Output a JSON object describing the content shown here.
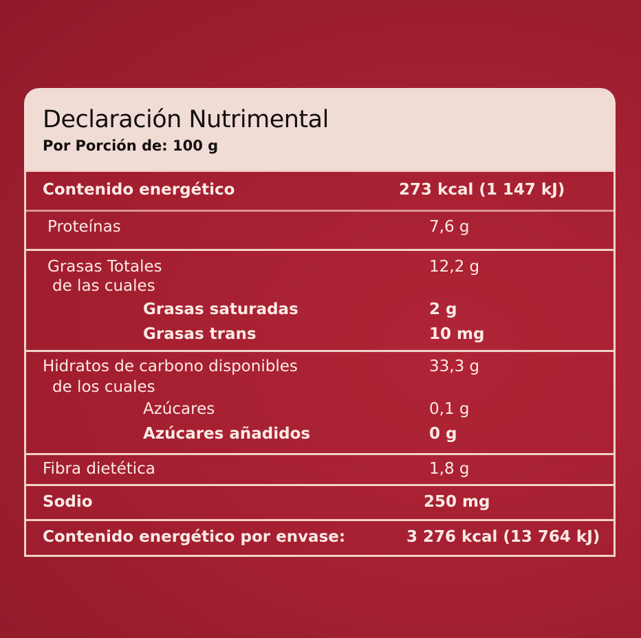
{
  "header": {
    "title": "Declaración Nutrimental",
    "subtitle": "Por Porción de: 100 g"
  },
  "rows": [
    {
      "label": "Contenido energético",
      "value": "273 kcal (1 147 kJ)"
    },
    {
      "label": "Proteínas",
      "value": "7,6 g"
    },
    {
      "label": "Grasas Totales",
      "sublabel": "de las cuales",
      "value": "12,2 g",
      "items": [
        {
          "label": "Grasas saturadas",
          "value": "2 g"
        },
        {
          "label": "Grasas trans",
          "value": "10 mg"
        }
      ]
    },
    {
      "label": "Hidratos de carbono disponibles",
      "sublabel": "de los cuales",
      "value": "33,3 g",
      "items": [
        {
          "label": "Azúcares",
          "value": "0,1 g"
        },
        {
          "label": "Azúcares añadidos",
          "value": "0 g"
        }
      ]
    },
    {
      "label": "Fibra dietética",
      "value": "1,8 g"
    },
    {
      "label": "Sodio",
      "value": "250 mg"
    },
    {
      "label": "Contenido energético por envase:",
      "value": "3 276 kcal (13 764 kJ)"
    }
  ],
  "colors": {
    "background": "#a01f2e",
    "header": "#f1dcd5",
    "lines": "#f2d3c9",
    "text": "#fbeae5"
  }
}
